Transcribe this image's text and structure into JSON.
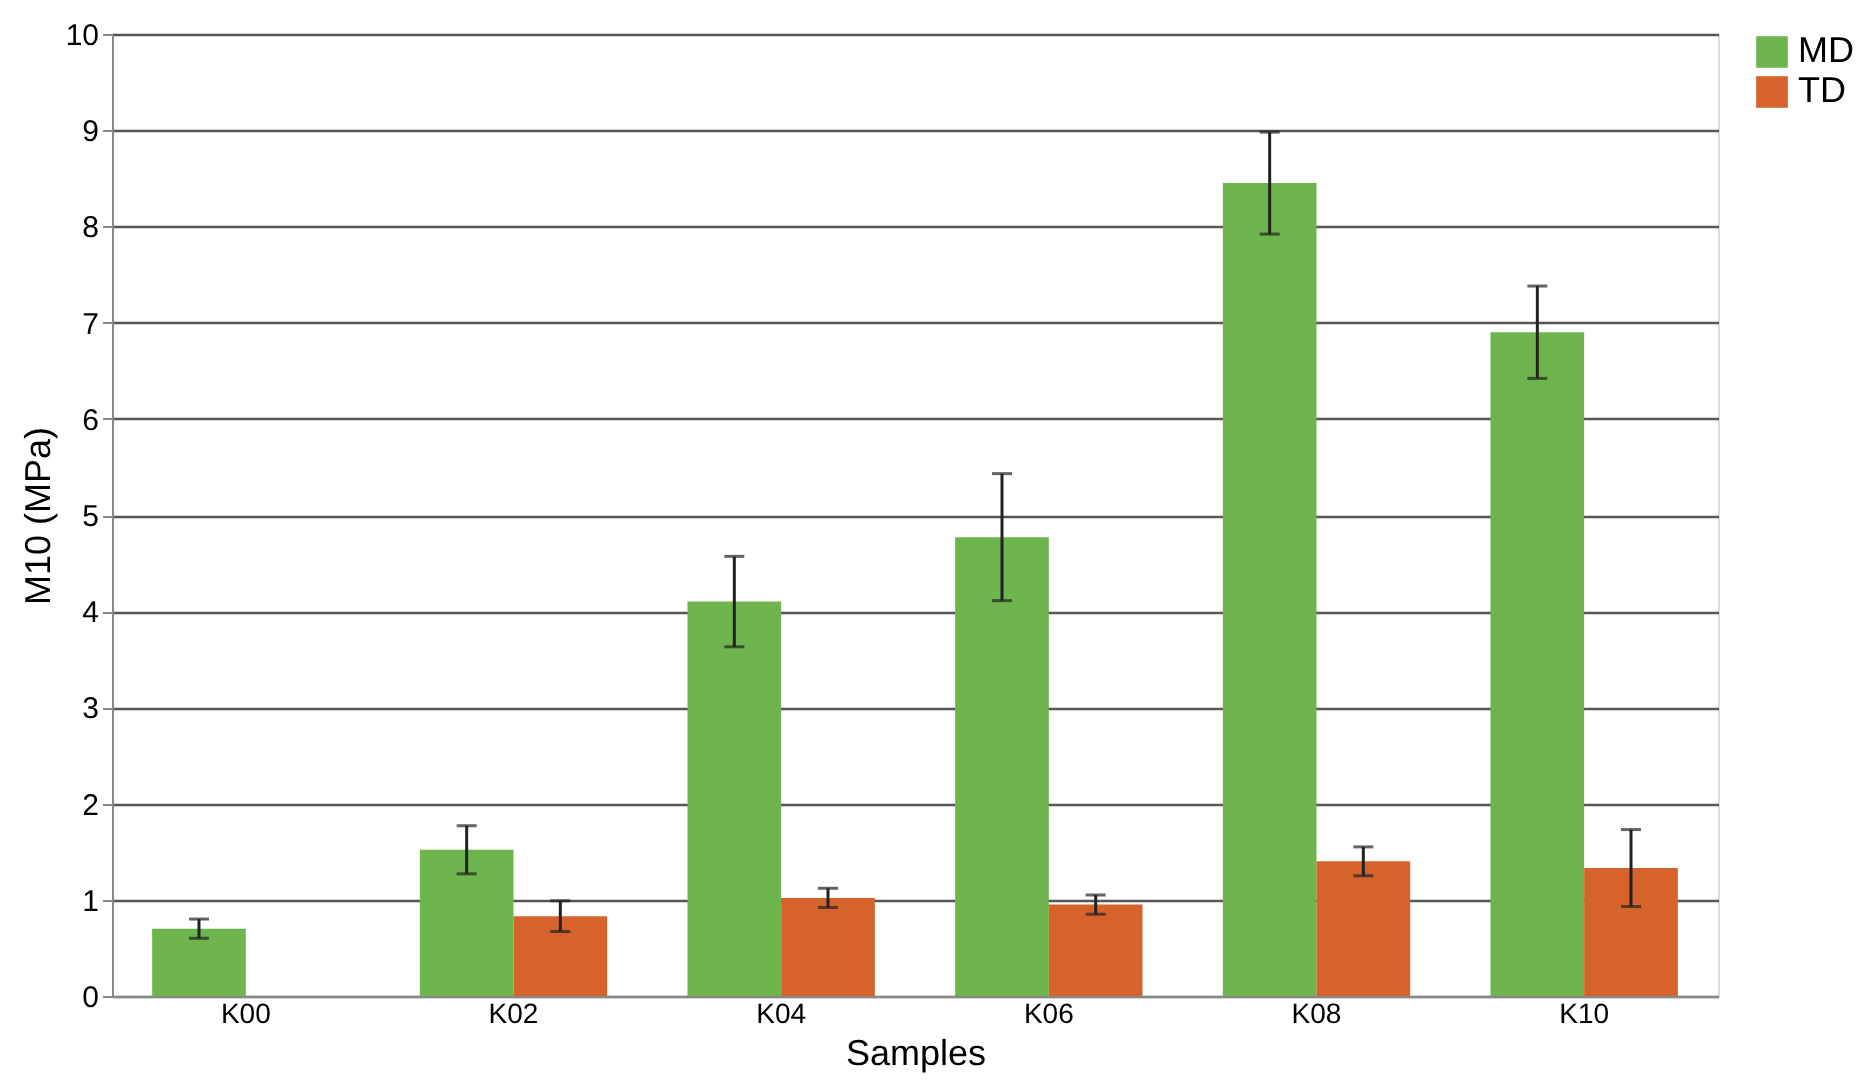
{
  "chart_data": {
    "type": "bar",
    "xlabel": "Samples",
    "ylabel": "M10 (MPa)",
    "categories": [
      "K00",
      "K02",
      "K04",
      "K06",
      "K08",
      "K10"
    ],
    "series": [
      {
        "name": "MD",
        "color": "#6db54c",
        "values": [
          0.7,
          1.52,
          4.1,
          4.77,
          8.45,
          6.9
        ],
        "errors": [
          0.1,
          0.25,
          0.47,
          0.66,
          0.53,
          0.48
        ]
      },
      {
        "name": "TD",
        "color": "#d5632b",
        "values": [
          null,
          0.83,
          1.02,
          0.95,
          1.4,
          1.33
        ],
        "errors": [
          null,
          0.16,
          0.1,
          0.1,
          0.15,
          0.4
        ]
      }
    ],
    "ylim": [
      0,
      10
    ],
    "yticks": [
      0,
      1,
      2,
      3,
      4,
      5,
      6,
      7,
      8,
      9,
      10
    ],
    "grid": "y",
    "legend": "right"
  }
}
